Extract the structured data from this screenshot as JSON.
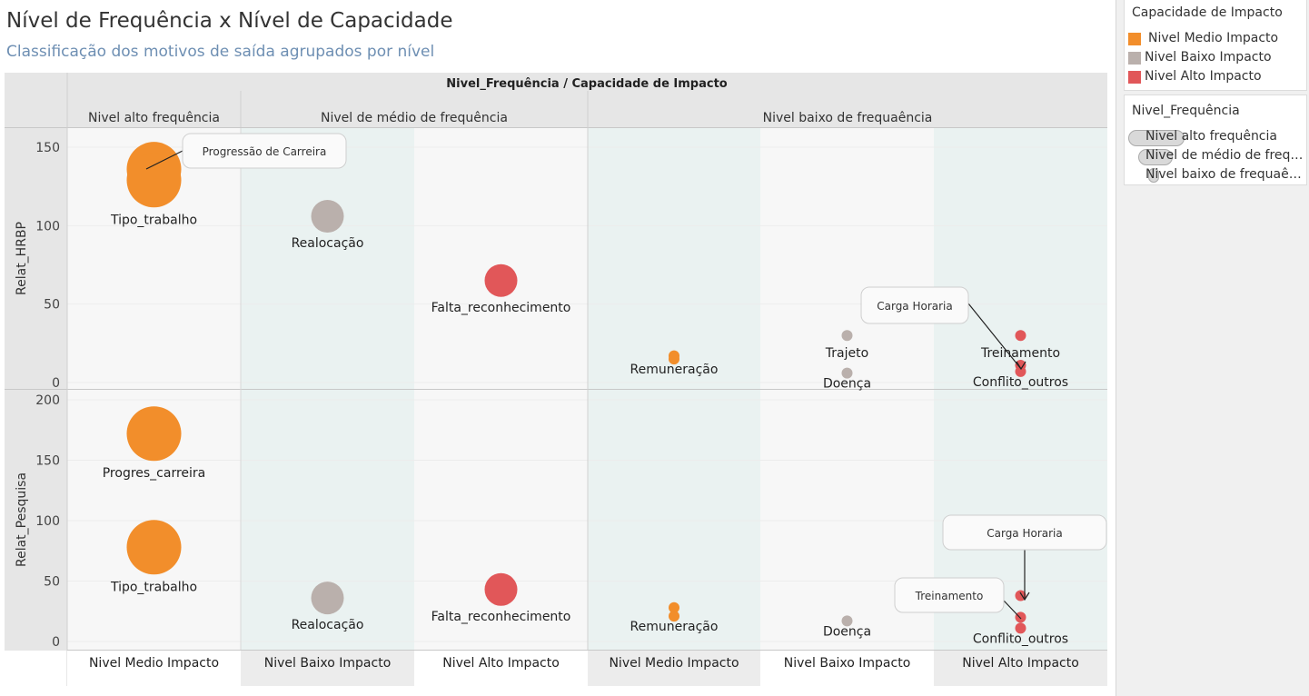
{
  "title": "Nível de Frequência  x Nível de Capacidade",
  "subtitle": "Classificação dos motivos de saída agrupados por nível",
  "colors": {
    "Nivel Medio Impacto": "#f28e2b",
    "Nivel Baixo Impacto": "#bab0ac",
    "Nivel Alto Impacto": "#e15759"
  },
  "legend_color": {
    "title": "Capacidade de Impacto",
    "items": [
      "Nivel Medio Impacto",
      "Nivel Baixo Impacto",
      "Nivel Alto Impacto"
    ]
  },
  "legend_size": {
    "title": "Nivel_Frequência",
    "items": [
      "Nivel alto frequência",
      "Nivel de médio de frequ..",
      "Nivel baixo de frequaên.."
    ]
  },
  "chart_data": {
    "type": "scatter",
    "column_header": "Nivel_Frequência  /  Capacidade de Impacto",
    "groups": [
      {
        "label": "Nivel alto frequência",
        "columns": [
          "Nivel Medio Impacto"
        ]
      },
      {
        "label": "Nivel de médio de frequência",
        "columns": [
          "Nivel Baixo Impacto",
          "Nivel Alto Impacto"
        ]
      },
      {
        "label": "Nivel baixo de frequaência",
        "columns": [
          "Nivel Medio Impacto",
          "Nivel Baixo Impacto",
          "Nivel Alto Impacto"
        ]
      }
    ],
    "rows": [
      {
        "label": "Relat_HRBP",
        "ylim": [
          0,
          160
        ],
        "ticks": [
          0,
          50,
          100,
          150
        ]
      },
      {
        "label": "Relat_Pesquisa",
        "ylim": [
          0,
          210
        ],
        "ticks": [
          0,
          50,
          100,
          150,
          200
        ]
      }
    ],
    "points": [
      {
        "row": 0,
        "col": 0,
        "y": 136,
        "size": 3,
        "impact": "Nivel Medio Impacto",
        "label": ""
      },
      {
        "row": 0,
        "col": 0,
        "y": 129,
        "size": 3,
        "impact": "Nivel Medio Impacto",
        "label": "Tipo_trabalho"
      },
      {
        "row": 0,
        "col": 1,
        "y": 106,
        "size": 2,
        "impact": "Nivel Baixo Impacto",
        "label": "Realocação"
      },
      {
        "row": 0,
        "col": 2,
        "y": 65,
        "size": 2,
        "impact": "Nivel Alto Impacto",
        "label": "Falta_reconhecimento"
      },
      {
        "row": 0,
        "col": 3,
        "y": 17,
        "size": 1,
        "impact": "Nivel Medio Impacto",
        "label": ""
      },
      {
        "row": 0,
        "col": 3,
        "y": 15,
        "size": 1,
        "impact": "Nivel Medio Impacto",
        "label": "Remuneração"
      },
      {
        "row": 0,
        "col": 4,
        "y": 30,
        "size": 1,
        "impact": "Nivel Baixo Impacto",
        "label": "Trajeto"
      },
      {
        "row": 0,
        "col": 4,
        "y": 6,
        "size": 1,
        "impact": "Nivel Baixo Impacto",
        "label": "Doença"
      },
      {
        "row": 0,
        "col": 5,
        "y": 30,
        "size": 1,
        "impact": "Nivel Alto Impacto",
        "label": "Treinamento"
      },
      {
        "row": 0,
        "col": 5,
        "y": 11,
        "size": 1,
        "impact": "Nivel Alto Impacto",
        "label": ""
      },
      {
        "row": 0,
        "col": 5,
        "y": 7,
        "size": 1,
        "impact": "Nivel Alto Impacto",
        "label": "Conflito_outros"
      },
      {
        "row": 1,
        "col": 0,
        "y": 172,
        "size": 3,
        "impact": "Nivel Medio Impacto",
        "label": "Progres_carreira"
      },
      {
        "row": 1,
        "col": 0,
        "y": 78,
        "size": 3,
        "impact": "Nivel Medio Impacto",
        "label": "Tipo_trabalho"
      },
      {
        "row": 1,
        "col": 1,
        "y": 36,
        "size": 2,
        "impact": "Nivel Baixo Impacto",
        "label": "Realocação"
      },
      {
        "row": 1,
        "col": 2,
        "y": 43,
        "size": 2,
        "impact": "Nivel Alto Impacto",
        "label": "Falta_reconhecimento"
      },
      {
        "row": 1,
        "col": 3,
        "y": 28,
        "size": 1,
        "impact": "Nivel Medio Impacto",
        "label": ""
      },
      {
        "row": 1,
        "col": 3,
        "y": 21,
        "size": 1,
        "impact": "Nivel Medio Impacto",
        "label": "Remuneração"
      },
      {
        "row": 1,
        "col": 4,
        "y": 17,
        "size": 1,
        "impact": "Nivel Baixo Impacto",
        "label": "Doença"
      },
      {
        "row": 1,
        "col": 5,
        "y": 38,
        "size": 1,
        "impact": "Nivel Alto Impacto",
        "label": ""
      },
      {
        "row": 1,
        "col": 5,
        "y": 20,
        "size": 1,
        "impact": "Nivel Alto Impacto",
        "label": ""
      },
      {
        "row": 1,
        "col": 5,
        "y": 11,
        "size": 1,
        "impact": "Nivel Alto Impacto",
        "label": "Conflito_outros"
      }
    ],
    "annotations": [
      {
        "row": 0,
        "col": 0,
        "text": "Progressão de Carreira",
        "target_y": 136
      },
      {
        "row": 0,
        "col": 5,
        "text": "Carga Horaria",
        "target_y": 11
      },
      {
        "row": 1,
        "col": 5,
        "text": "Carga Horaria",
        "target_y": 38
      },
      {
        "row": 1,
        "col": 5,
        "text": "Treinamento",
        "target_y": 20
      }
    ]
  }
}
